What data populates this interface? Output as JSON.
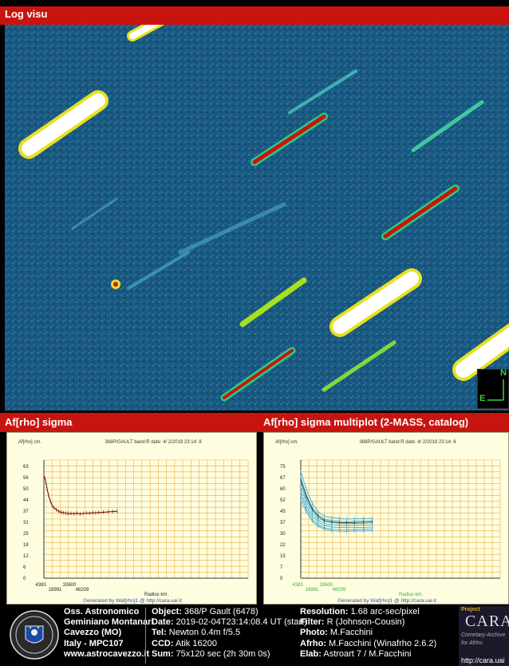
{
  "top_bar": {
    "title": "Log visu"
  },
  "compass": {
    "n": "N",
    "e": "E"
  },
  "section_bar": {
    "left_title": "Af[rho] sigma",
    "right_title": "Af[rho] sigma multiplot (2-MASS, catalog)"
  },
  "chart_data": [
    {
      "type": "line",
      "title": "368P/GAULT band:R date: 4/ 2/2019 23:14: 8",
      "ylabel": "Af[rho] cm.",
      "xlabel": "Radius km.",
      "yticks": [
        "63",
        "56",
        "50",
        "44",
        "37",
        "31",
        "25",
        "18",
        "12",
        "6",
        "0"
      ],
      "xticks_top": [
        "4383",
        "33600"
      ],
      "xticks_bottom": [
        "18991",
        "48209"
      ],
      "ylim": [
        0,
        69
      ],
      "xlim": [
        4383,
        137000
      ],
      "series": [
        {
          "x": [
            4383,
            5500,
            6500,
            7500,
            8600,
            9700,
            11000,
            12500,
            14000,
            15500,
            17000,
            18500,
            20000,
            22000,
            24000,
            26000,
            28000,
            30000,
            32000,
            34000,
            36000,
            38000,
            40000,
            43000,
            46000,
            49000,
            52000
          ],
          "y": [
            60,
            57,
            52,
            48,
            45,
            42.5,
            41,
            40,
            39,
            38.5,
            38.2,
            38,
            37.7,
            37.8,
            37.6,
            37.9,
            37.5,
            37.8,
            38,
            37.9,
            38.2,
            38.1,
            38.3,
            38.5,
            38.7,
            38.9,
            39
          ]
        }
      ],
      "footer_text": "Generated by Waf[rho]1 @ http://cara.uai.it",
      "colors": {
        "grid": "#e8b040",
        "line": "#7a1010",
        "axis_text": "#222222"
      }
    },
    {
      "type": "line",
      "title": "368P/GAULT band:R date: 4/ 2/2019 23:14: 8",
      "ylabel": "Af[rho] cm.",
      "xlabel": "Radius km.",
      "yticks": [
        "75",
        "67",
        "60",
        "52",
        "45",
        "37",
        "30",
        "22",
        "15",
        "7",
        "0"
      ],
      "xticks_top": [
        "4383",
        "33600"
      ],
      "xticks_bottom": [
        "18991",
        "48209"
      ],
      "ylim": [
        0,
        82
      ],
      "xlim": [
        4383,
        137000
      ],
      "series": [
        {
          "x": [
            4383,
            8000,
            12000,
            16000,
            20000,
            25000,
            30000,
            35000,
            40000,
            46000,
            52000
          ],
          "y": [
            74,
            62,
            52,
            46,
            43,
            42,
            41.5,
            41,
            41.2,
            41.4,
            41.5
          ]
        },
        {
          "x": [
            4383,
            8000,
            12000,
            16000,
            20000,
            25000,
            30000,
            35000,
            40000,
            46000,
            52000
          ],
          "y": [
            70,
            58,
            49,
            44,
            41,
            40,
            39.5,
            39.2,
            39.5,
            39.6,
            39.8
          ]
        },
        {
          "x": [
            4383,
            8000,
            12000,
            16000,
            20000,
            25000,
            30000,
            35000,
            40000,
            46000,
            52000
          ],
          "y": [
            66,
            55,
            47,
            42,
            39.5,
            38.5,
            38,
            37.8,
            38,
            38.1,
            38.3
          ]
        },
        {
          "x": [
            4383,
            8000,
            12000,
            16000,
            20000,
            25000,
            30000,
            35000,
            40000,
            46000,
            52000
          ],
          "y": [
            63,
            53,
            45,
            40.5,
            38,
            37,
            36.6,
            36.5,
            36.7,
            36.8,
            37
          ]
        },
        {
          "x": [
            4383,
            8000,
            12000,
            16000,
            20000,
            25000,
            30000,
            35000,
            40000,
            46000,
            52000
          ],
          "y": [
            60,
            50,
            43,
            39,
            36.5,
            35.5,
            35.2,
            35,
            35.1,
            35.3,
            35.4
          ]
        },
        {
          "x": [
            4383,
            8000,
            12000,
            16000,
            20000,
            25000,
            30000,
            35000,
            40000,
            46000,
            52000
          ],
          "y": [
            57,
            48,
            41,
            37,
            35,
            34,
            33.6,
            33.5,
            33.7,
            33.9,
            34
          ]
        },
        {
          "x": [
            4383,
            8000,
            12000,
            16000,
            20000,
            25000,
            30000,
            35000,
            40000,
            46000,
            52000
          ],
          "y": [
            54,
            46,
            39.5,
            36,
            34,
            33,
            32.6,
            32.5,
            32.7,
            32.8,
            33
          ]
        },
        {
          "x": [
            4383,
            8000,
            12000,
            16000,
            20000,
            25000,
            30000,
            35000,
            40000,
            46000,
            52000
          ],
          "y": [
            68,
            57,
            48,
            43,
            40,
            39,
            38.6,
            38.4,
            38.6,
            38.8,
            39
          ]
        }
      ],
      "footer_text": "Generated by Waf[rho]1 @ http://cara.uai.it",
      "colors": {
        "grid": "#e8b040",
        "line": "#2aa8d8",
        "mean_line": "#1a3a3a",
        "x_ticks": "#3ab03a"
      }
    }
  ],
  "footer": {
    "observatory": {
      "line1": "Oss. Astronomico",
      "line2": "Geminiano Montanari",
      "line3": "Cavezzo (MO)",
      "line4": "Italy - MPC107",
      "line5": "www.astrocavezzo.it"
    },
    "object": [
      {
        "label": "Object:",
        "value": " 368/P Gault (6478)"
      },
      {
        "label": "Date:",
        "value": " 2019-02-04T23:14:08.4 UT (start)"
      },
      {
        "label": "Tel:",
        "value": " Newton 0.4m f/5.5"
      },
      {
        "label": "CCD:",
        "value": " Atik 16200"
      },
      {
        "label": "Sum:",
        "value": " 75x120 sec (2h 30m 0s)"
      }
    ],
    "resolution": [
      {
        "label": "Resolution:",
        "value": " 1.68 arc-sec/pixel"
      },
      {
        "label": "Filter:",
        "value": " R (Johnson-Cousin)"
      },
      {
        "label": "Photo:",
        "value": " M.Facchini"
      },
      {
        "label": "Afrho:",
        "value": " M.Facchini (Winafrho 2.6.2)"
      },
      {
        "label": "Elab:",
        "value": " Astroart 7 / M.Facchini"
      }
    ],
    "cara": {
      "project": "Project",
      "name": "CARA",
      "tagline1": "Cometary Archive",
      "tagline2": "for Afrho",
      "url": "http://cara.uai"
    }
  }
}
